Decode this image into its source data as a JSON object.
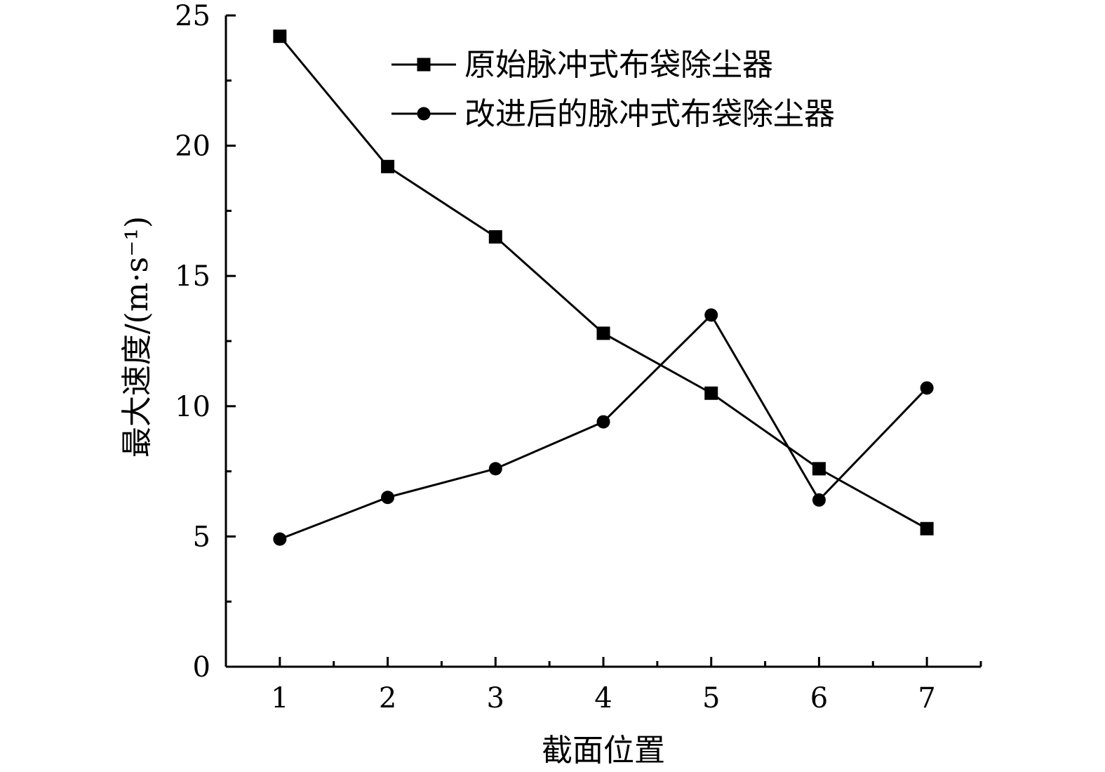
{
  "chart_data": {
    "type": "line",
    "title": "",
    "xlabel": "截面位置",
    "ylabel": "最大速度/(m·s⁻¹)",
    "x": [
      1,
      2,
      3,
      4,
      5,
      6,
      7
    ],
    "xlim": [
      0.5,
      7.5
    ],
    "ylim": [
      0,
      25
    ],
    "x_ticks": [
      "1",
      "2",
      "3",
      "4",
      "5",
      "6",
      "7"
    ],
    "y_ticks": [
      "0",
      "5",
      "10",
      "15",
      "20",
      "25"
    ],
    "grid": false,
    "legend_position": "top-right",
    "series": [
      {
        "name": "原始脉冲式布袋除尘器",
        "marker": "square",
        "color": "#000000",
        "values": [
          24.2,
          19.2,
          16.5,
          12.8,
          10.5,
          7.6,
          5.3
        ]
      },
      {
        "name": "改进后的脉冲式布袋除尘器",
        "marker": "circle",
        "color": "#000000",
        "values": [
          4.9,
          6.5,
          7.6,
          9.4,
          13.5,
          6.4,
          10.7
        ]
      }
    ]
  }
}
